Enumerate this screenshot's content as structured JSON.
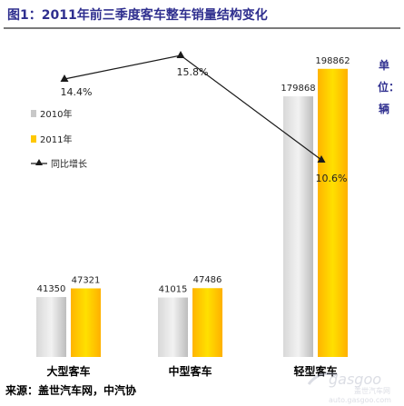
{
  "title": "图1：2011年前三季度客车整车销量结构变化",
  "unit_label": "单位：辆",
  "source": "来源：盖世汽车网，中汽协",
  "watermark": {
    "brand": "gasgoo",
    "cn": "盖世汽车网",
    "url": "auto.gasgoo.com"
  },
  "colors": {
    "2010": "#c8c8c8",
    "2011": "#ffc800",
    "line": "#1a1a1a",
    "title": "#2f2f8f"
  },
  "chart_data": {
    "type": "bar",
    "title": "2011年前三季度客车整车销量结构变化",
    "categories": [
      "大型客车",
      "中型客车",
      "轻型客车"
    ],
    "series": [
      {
        "name": "2010年",
        "values": [
          41350,
          41015,
          179868
        ]
      },
      {
        "name": "2011年",
        "values": [
          47321,
          47486,
          198862
        ]
      }
    ],
    "value_labels": [
      [
        "41350",
        "41015",
        "179868"
      ],
      [
        "47321",
        "47486",
        "198862"
      ]
    ],
    "line_series": {
      "name": "同比增长",
      "values": [
        14.4,
        15.8,
        10.6
      ],
      "labels": [
        "14.4%",
        "15.8%",
        "10.6%"
      ]
    },
    "legend": {
      "placement": "left",
      "items": [
        "2010年",
        "2011年",
        "同比增长"
      ]
    },
    "ylim": [
      0,
      210000
    ],
    "line_ylim": [
      0,
      18
    ],
    "grid": false
  }
}
